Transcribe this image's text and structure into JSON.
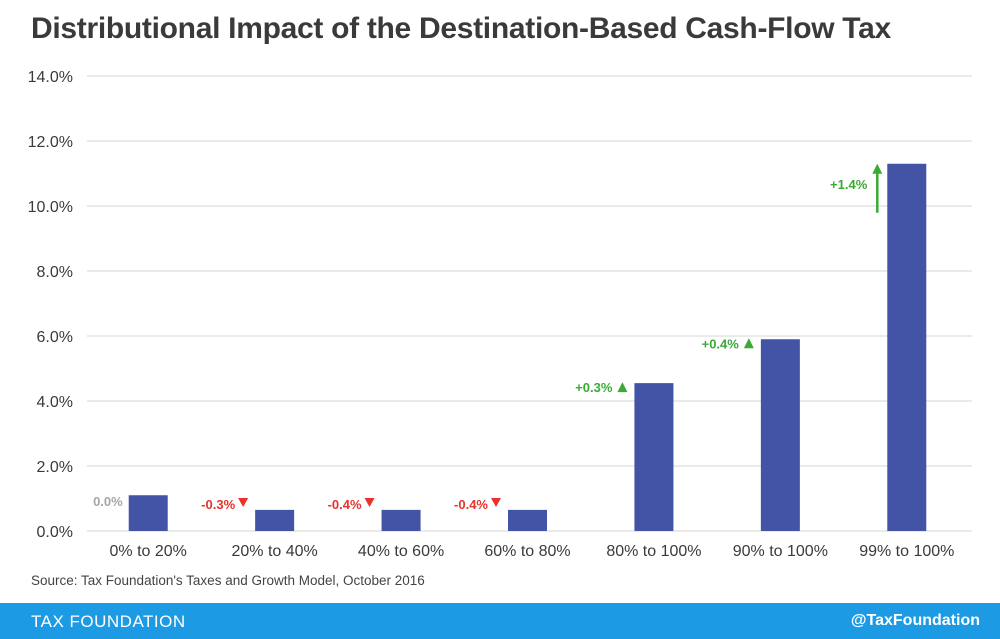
{
  "title": "Distributional Impact of the Destination-Based Cash-Flow Tax",
  "source": "Source: Tax Foundation's Taxes and Growth Model, October 2016",
  "footer": {
    "brand": "TAX FOUNDATION",
    "handle": "@TaxFoundation"
  },
  "colors": {
    "bar": "#4353a5",
    "grid": "#d6d6d6",
    "footer": "#1c9ae4",
    "positive": "#3aaa35",
    "negative": "#e8322b",
    "neutral": "#a6a6a6"
  },
  "chart_data": {
    "type": "bar",
    "title": "Distributional Impact of the Destination-Based Cash-Flow Tax",
    "xlabel": "",
    "ylabel": "",
    "ylim": [
      0,
      14
    ],
    "grid": true,
    "yticks": [
      "0.0%",
      "2.0%",
      "4.0%",
      "6.0%",
      "8.0%",
      "10.0%",
      "12.0%",
      "14.0%"
    ],
    "categories": [
      "0% to 20%",
      "20% to 40%",
      "40% to 60%",
      "60% to 80%",
      "80% to 100%",
      "90% to 100%",
      "99% to 100%"
    ],
    "values": [
      1.1,
      0.65,
      0.65,
      0.65,
      4.55,
      5.9,
      11.3
    ],
    "annotations": [
      {
        "text": "0.0%",
        "direction": "none",
        "color": "#a6a6a6"
      },
      {
        "text": "-0.3%",
        "direction": "down",
        "color": "#e8322b"
      },
      {
        "text": "-0.4%",
        "direction": "down",
        "color": "#e8322b"
      },
      {
        "text": "-0.4%",
        "direction": "down",
        "color": "#e8322b"
      },
      {
        "text": "+0.3%",
        "direction": "up",
        "color": "#3aaa35"
      },
      {
        "text": "+0.4%",
        "direction": "up",
        "color": "#3aaa35"
      },
      {
        "text": "+1.4%",
        "direction": "up",
        "color": "#3aaa35"
      }
    ]
  }
}
